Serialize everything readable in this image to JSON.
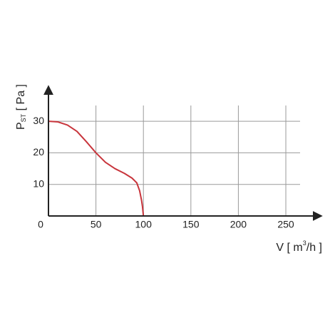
{
  "chart_data": {
    "type": "line",
    "ylabel": [
      "P",
      "ST",
      " [ Pa ]"
    ],
    "xlabel": [
      "V [ m",
      "3",
      "/h ]"
    ],
    "x": [
      0,
      10,
      20,
      30,
      40,
      50,
      60,
      70,
      80,
      88,
      93,
      96,
      98,
      99,
      100
    ],
    "series": [
      {
        "color": "#c8353c",
        "values": [
          30,
          29.8,
          28.8,
          26.8,
          23.5,
          20,
          17,
          15,
          13.5,
          12,
          10.5,
          8,
          5,
          3,
          0
        ]
      }
    ],
    "xlim": [
      0,
      265
    ],
    "ylim": [
      0,
      35
    ],
    "xticks": [
      0,
      50,
      100,
      150,
      200,
      250
    ],
    "yticks": [
      10,
      20,
      30
    ],
    "grid": true
  }
}
